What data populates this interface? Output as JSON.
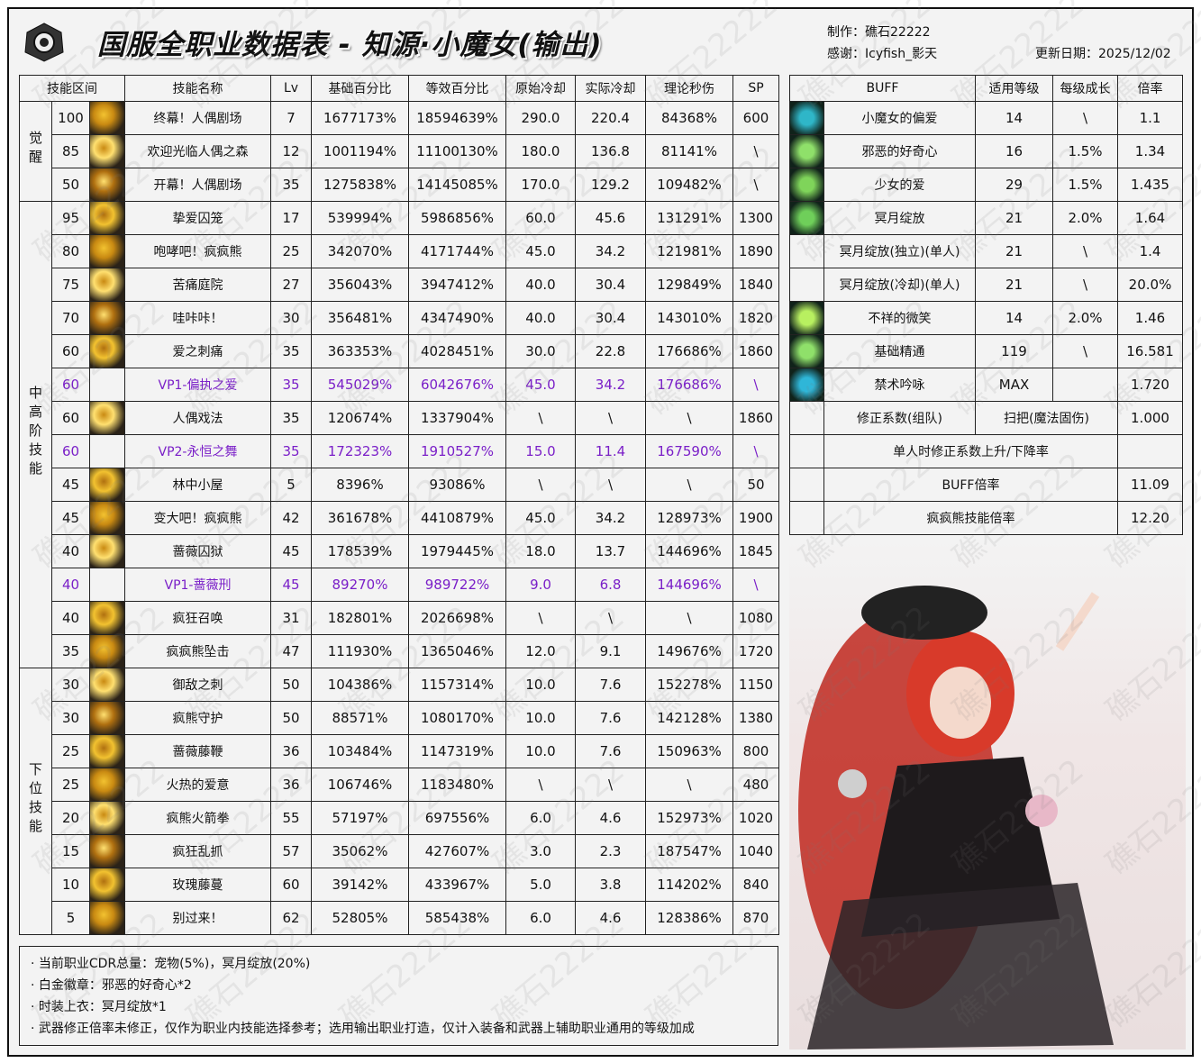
{
  "header": {
    "title": "国服全职业数据表 - 知源·小魔女(输出)",
    "author": "制作：礁石22222",
    "thanks": "感谢：Icyfish_影天",
    "updated": "更新日期：2025/12/02",
    "watermark": "礁石22222"
  },
  "skills_table": {
    "columns": [
      "技能区间",
      "技能名称",
      "Lv",
      "基础百分比",
      "等效百分比",
      "原始冷却",
      "实际冷却",
      "理论秒伤",
      "SP"
    ],
    "groups": [
      {
        "label": "觉醒",
        "count": 3
      },
      {
        "label": "中高阶技能",
        "count": 14
      },
      {
        "label": "下位技能",
        "count": 8
      }
    ],
    "vp_color": "#7a1fc8",
    "rows": [
      {
        "level": "100",
        "name": "终幕！人偶剧场",
        "lv": "7",
        "base": "1677173%",
        "equiv": "18594639%",
        "cd": "290.0",
        "real_cd": "220.4",
        "dps": "84368%",
        "sp": "600",
        "vp": false
      },
      {
        "level": "85",
        "name": "欢迎光临人偶之森",
        "lv": "12",
        "base": "1001194%",
        "equiv": "11100130%",
        "cd": "180.0",
        "real_cd": "136.8",
        "dps": "81141%",
        "sp": "\\",
        "vp": false
      },
      {
        "level": "50",
        "name": "开幕！人偶剧场",
        "lv": "35",
        "base": "1275838%",
        "equiv": "14145085%",
        "cd": "170.0",
        "real_cd": "129.2",
        "dps": "109482%",
        "sp": "\\",
        "vp": false
      },
      {
        "level": "95",
        "name": "挚爱囚笼",
        "lv": "17",
        "base": "539994%",
        "equiv": "5986856%",
        "cd": "60.0",
        "real_cd": "45.6",
        "dps": "131291%",
        "sp": "1300",
        "vp": false
      },
      {
        "level": "80",
        "name": "咆哮吧！疯疯熊",
        "lv": "25",
        "base": "342070%",
        "equiv": "4171744%",
        "cd": "45.0",
        "real_cd": "34.2",
        "dps": "121981%",
        "sp": "1890",
        "vp": false
      },
      {
        "level": "75",
        "name": "苦痛庭院",
        "lv": "27",
        "base": "356043%",
        "equiv": "3947412%",
        "cd": "40.0",
        "real_cd": "30.4",
        "dps": "129849%",
        "sp": "1840",
        "vp": false
      },
      {
        "level": "70",
        "name": "哇咔咔！",
        "lv": "30",
        "base": "356481%",
        "equiv": "4347490%",
        "cd": "40.0",
        "real_cd": "30.4",
        "dps": "143010%",
        "sp": "1820",
        "vp": false
      },
      {
        "level": "60",
        "name": "爱之刺痛",
        "lv": "35",
        "base": "363353%",
        "equiv": "4028451%",
        "cd": "30.0",
        "real_cd": "22.8",
        "dps": "176686%",
        "sp": "1860",
        "vp": false
      },
      {
        "level": "60",
        "name": "VP1-偏执之爱",
        "lv": "35",
        "base": "545029%",
        "equiv": "6042676%",
        "cd": "45.0",
        "real_cd": "34.2",
        "dps": "176686%",
        "sp": "\\",
        "vp": true
      },
      {
        "level": "60",
        "name": "人偶戏法",
        "lv": "35",
        "base": "120674%",
        "equiv": "1337904%",
        "cd": "\\",
        "real_cd": "\\",
        "dps": "\\",
        "sp": "1860",
        "vp": false
      },
      {
        "level": "60",
        "name": "VP2-永恒之舞",
        "lv": "35",
        "base": "172323%",
        "equiv": "1910527%",
        "cd": "15.0",
        "real_cd": "11.4",
        "dps": "167590%",
        "sp": "\\",
        "vp": true
      },
      {
        "level": "45",
        "name": "林中小屋",
        "lv": "5",
        "base": "8396%",
        "equiv": "93086%",
        "cd": "\\",
        "real_cd": "\\",
        "dps": "\\",
        "sp": "50",
        "vp": false
      },
      {
        "level": "45",
        "name": "变大吧！疯疯熊",
        "lv": "42",
        "base": "361678%",
        "equiv": "4410879%",
        "cd": "45.0",
        "real_cd": "34.2",
        "dps": "128973%",
        "sp": "1900",
        "vp": false
      },
      {
        "level": "40",
        "name": "蔷薇囚狱",
        "lv": "45",
        "base": "178539%",
        "equiv": "1979445%",
        "cd": "18.0",
        "real_cd": "13.7",
        "dps": "144696%",
        "sp": "1845",
        "vp": false
      },
      {
        "level": "40",
        "name": "VP1-蔷薇刑",
        "lv": "45",
        "base": "89270%",
        "equiv": "989722%",
        "cd": "9.0",
        "real_cd": "6.8",
        "dps": "144696%",
        "sp": "\\",
        "vp": true
      },
      {
        "level": "40",
        "name": "疯狂召唤",
        "lv": "31",
        "base": "182801%",
        "equiv": "2026698%",
        "cd": "\\",
        "real_cd": "\\",
        "dps": "\\",
        "sp": "1080",
        "vp": false
      },
      {
        "level": "35",
        "name": "疯疯熊坠击",
        "lv": "47",
        "base": "111930%",
        "equiv": "1365046%",
        "cd": "12.0",
        "real_cd": "9.1",
        "dps": "149676%",
        "sp": "1720",
        "vp": false
      },
      {
        "level": "30",
        "name": "御敌之刺",
        "lv": "50",
        "base": "104386%",
        "equiv": "1157314%",
        "cd": "10.0",
        "real_cd": "7.6",
        "dps": "152278%",
        "sp": "1150",
        "vp": false
      },
      {
        "level": "30",
        "name": "疯熊守护",
        "lv": "50",
        "base": "88571%",
        "equiv": "1080170%",
        "cd": "10.0",
        "real_cd": "7.6",
        "dps": "142128%",
        "sp": "1380",
        "vp": false
      },
      {
        "level": "25",
        "name": "蔷薇藤鞭",
        "lv": "36",
        "base": "103484%",
        "equiv": "1147319%",
        "cd": "10.0",
        "real_cd": "7.6",
        "dps": "150963%",
        "sp": "800",
        "vp": false
      },
      {
        "level": "25",
        "name": "火热的爱意",
        "lv": "36",
        "base": "106746%",
        "equiv": "1183480%",
        "cd": "\\",
        "real_cd": "\\",
        "dps": "\\",
        "sp": "480",
        "vp": false
      },
      {
        "level": "20",
        "name": "疯熊火箭拳",
        "lv": "55",
        "base": "57197%",
        "equiv": "697556%",
        "cd": "6.0",
        "real_cd": "4.6",
        "dps": "152973%",
        "sp": "1020",
        "vp": false
      },
      {
        "level": "15",
        "name": "疯狂乱抓",
        "lv": "57",
        "base": "35062%",
        "equiv": "427607%",
        "cd": "3.0",
        "real_cd": "2.3",
        "dps": "187547%",
        "sp": "1040",
        "vp": false
      },
      {
        "level": "10",
        "name": "玫瑰藤蔓",
        "lv": "60",
        "base": "39142%",
        "equiv": "433967%",
        "cd": "5.0",
        "real_cd": "3.8",
        "dps": "114202%",
        "sp": "840",
        "vp": false
      },
      {
        "level": "5",
        "name": "别过来！",
        "lv": "62",
        "base": "52805%",
        "equiv": "585438%",
        "cd": "6.0",
        "real_cd": "4.6",
        "dps": "128386%",
        "sp": "870",
        "vp": false
      }
    ]
  },
  "buff_table": {
    "columns": [
      "BUFF",
      "适用等级",
      "每级成长",
      "倍率"
    ],
    "rows": [
      {
        "name": "小魔女的偏爱",
        "level": "14",
        "growth": "\\",
        "rate": "1.1",
        "icon": "heart-shield-icon",
        "color": "#2fb6c8"
      },
      {
        "name": "邪恶的好奇心",
        "level": "16",
        "growth": "1.5%",
        "rate": "1.34",
        "icon": "curious-bear-icon",
        "color": "#8fe06a"
      },
      {
        "name": "少女的爱",
        "level": "29",
        "growth": "1.5%",
        "rate": "1.435",
        "icon": "girl-love-icon",
        "color": "#7fd45a"
      },
      {
        "name": "冥月绽放",
        "level": "21",
        "growth": "2.0%",
        "rate": "1.64",
        "icon": "rose-icon",
        "color": "#6fcf5a"
      },
      {
        "name": "冥月绽放(独立)(单人)",
        "level": "21",
        "growth": "\\",
        "rate": "1.4",
        "icon": "",
        "color": ""
      },
      {
        "name": "冥月绽放(冷却)(单人)",
        "level": "21",
        "growth": "\\",
        "rate": "20.0%",
        "icon": "",
        "color": ""
      },
      {
        "name": "不祥的微笑",
        "level": "14",
        "growth": "2.0%",
        "rate": "1.46",
        "icon": "bear-smile-icon",
        "color": "#b8f060"
      },
      {
        "name": "基础精通",
        "level": "119",
        "growth": "\\",
        "rate": "16.581",
        "icon": "mastery-icon",
        "color": "#8fe06a"
      },
      {
        "name": "禁术吟咏",
        "level": "MAX",
        "growth": "",
        "rate": "1.720",
        "icon": "forbidden-rose-icon",
        "color": "#2fb6d8"
      }
    ],
    "correction": {
      "label": "修正系数(组队)",
      "weapon": "扫把(魔法固伤)",
      "rate": "1.000"
    },
    "solo_rate": {
      "label": "单人时修正系数上升/下降率",
      "rate": ""
    },
    "buff_rate": {
      "label": "BUFF倍率",
      "rate": "11.09"
    },
    "bear_rate": {
      "label": "疯疯熊技能倍率",
      "rate": "12.20"
    }
  },
  "notes": [
    "· 当前职业CDR总量：宠物(5%)，冥月绽放(20%)",
    "· 白金徽章：邪恶的好奇心*2",
    "· 时装上衣：冥月绽放*1",
    "· 武器修正倍率未修正，仅作为职业内技能选择参考；选用输出职业打造，仅计入装备和武器上辅助职业通用的等级加成"
  ]
}
